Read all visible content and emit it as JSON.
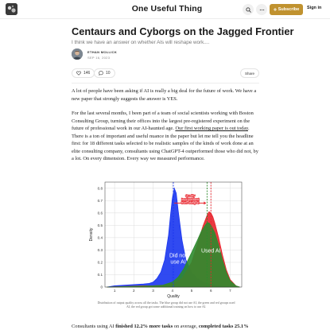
{
  "header": {
    "publication_name": "One Useful Thing",
    "subscribe_label": "Subscribe",
    "signin_label": "Sign in",
    "icons": [
      "search-icon",
      "more-icon",
      "bookmark-icon"
    ]
  },
  "post": {
    "title": "Centaurs and Cyborgs on the Jagged Frontier",
    "subtitle": "I think we have an answer on whether AIs will reshape work....",
    "author": "ETHAN MOLLICK",
    "date": "SEP 16, 2023",
    "likes": "146",
    "comments": "10",
    "share_label": "Share"
  },
  "body": {
    "p1": "A lot of people have been asking if AI is really a big deal for the future of work. We have a new paper that strongly suggests the answer is YES.",
    "p2_before": "For the last several months, I been part of a team of social scientists working with Boston Consulting Group, turning their offices into the largest pre-registered experiment on the future of professional work in our AI-haunted age. ",
    "p2_link": "Our first working paper is out today",
    "p2_after": ". There is a ton of important and useful nuance in the paper but let me tell you the headline first: for 18 different tasks selected to be realistic samples of the kinds of work done at an elite consulting company, consultants using ChatGPT-4 outperformed those who did not, by a lot. On every dimension. Every way we measured performance.",
    "caption": "Distribution of output quality across all the tasks. The blue group did not use AI, the green and red groups used AI, the red group got some additional training on how to use AI.",
    "last_line_prefix": "Consultants using AI ",
    "last_line_bold1": "finished 12.2% more tasks",
    "last_line_mid": " on average, ",
    "last_line_bold2": "completed tasks 25.1%"
  },
  "chart_data": {
    "type": "area",
    "xlabel": "Quality",
    "ylabel": "Density",
    "xlim": [
      0.5,
      7.6
    ],
    "ylim": [
      0,
      0.85
    ],
    "xticks": [
      1,
      2,
      3,
      4,
      5,
      6,
      7
    ],
    "yticks": [
      0,
      0.1,
      0.2,
      0.3,
      0.4,
      0.5,
      0.6,
      0.7,
      0.8
    ],
    "series": [
      {
        "color": "#1a36f0",
        "x": [
          0.6,
          1.0,
          1.5,
          2.0,
          2.5,
          2.8,
          3.0,
          3.2,
          3.4,
          3.6,
          3.8,
          3.9,
          4.0,
          4.1,
          4.2,
          4.3,
          4.5,
          4.7,
          5.0,
          5.3,
          5.6,
          6.0,
          6.4,
          7.0,
          7.5
        ],
        "values": [
          0.0,
          0.01,
          0.015,
          0.02,
          0.025,
          0.03,
          0.04,
          0.07,
          0.12,
          0.22,
          0.42,
          0.58,
          0.72,
          0.8,
          0.76,
          0.62,
          0.38,
          0.22,
          0.12,
          0.07,
          0.04,
          0.02,
          0.01,
          0.0,
          0.0
        ]
      },
      {
        "color": "#e8242c",
        "x": [
          0.6,
          1.5,
          2.0,
          2.5,
          3.0,
          3.5,
          4.0,
          4.5,
          5.0,
          5.2,
          5.4,
          5.6,
          5.8,
          5.9,
          6.0,
          6.1,
          6.2,
          6.4,
          6.6,
          6.8,
          7.0,
          7.3,
          7.5
        ],
        "values": [
          0.0,
          0.005,
          0.008,
          0.01,
          0.01,
          0.015,
          0.03,
          0.07,
          0.2,
          0.3,
          0.4,
          0.5,
          0.58,
          0.61,
          0.6,
          0.57,
          0.52,
          0.4,
          0.26,
          0.14,
          0.06,
          0.01,
          0.0
        ]
      },
      {
        "color": "#2e8b2e",
        "x": [
          0.6,
          1.5,
          2.0,
          2.5,
          3.0,
          3.5,
          4.0,
          4.3,
          4.6,
          5.0,
          5.3,
          5.5,
          5.7,
          5.8,
          5.9,
          6.0,
          6.2,
          6.4,
          6.6,
          6.8,
          7.0,
          7.3,
          7.5
        ],
        "values": [
          0.0,
          0.004,
          0.006,
          0.008,
          0.01,
          0.015,
          0.04,
          0.08,
          0.15,
          0.28,
          0.38,
          0.45,
          0.5,
          0.52,
          0.52,
          0.5,
          0.44,
          0.34,
          0.22,
          0.12,
          0.05,
          0.01,
          0.0
        ]
      }
    ],
    "mean_lines": [
      {
        "x": 4.05,
        "color": "#1a36f0"
      },
      {
        "x": 5.8,
        "color": "#2e8b2e"
      },
      {
        "x": 6.0,
        "color": "#e8242c"
      }
    ],
    "annotations": [
      {
        "text": "Did not use AI",
        "x": 4.3,
        "y": 0.24
      },
      {
        "text": "Used AI",
        "x": 6.0,
        "y": 0.28
      }
    ],
    "arrow_annotation": {
      "lines": [
        "Quality",
        "improvement",
        "from using AI"
      ],
      "x_from": 4.05,
      "x_to": 5.8,
      "y": 0.68
    }
  }
}
